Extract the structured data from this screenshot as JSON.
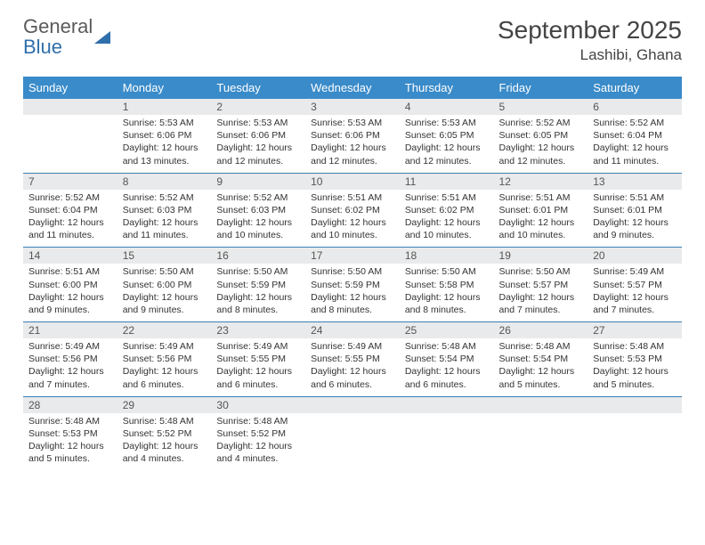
{
  "logo": {
    "line1": "General",
    "line2": "Blue"
  },
  "title": {
    "month": "September 2025",
    "location": "Lashibi, Ghana"
  },
  "weekdays": [
    "Sunday",
    "Monday",
    "Tuesday",
    "Wednesday",
    "Thursday",
    "Friday",
    "Saturday"
  ],
  "colors": {
    "header_bg": "#3a8bc9",
    "header_text": "#ffffff",
    "row_border": "#3a7fb5",
    "daynum_bg": "#e9eaeb",
    "body_text": "#333333",
    "logo_gray": "#5a5a5a",
    "logo_blue": "#2f6fab"
  },
  "typography": {
    "title_fontsize": 28,
    "location_fontsize": 17,
    "weekday_fontsize": 13,
    "daynum_fontsize": 12,
    "cell_fontsize": 10.5
  },
  "weeks": [
    [
      null,
      {
        "n": "1",
        "sr": "5:53 AM",
        "ss": "6:06 PM",
        "dl": "12 hours and 13 minutes."
      },
      {
        "n": "2",
        "sr": "5:53 AM",
        "ss": "6:06 PM",
        "dl": "12 hours and 12 minutes."
      },
      {
        "n": "3",
        "sr": "5:53 AM",
        "ss": "6:06 PM",
        "dl": "12 hours and 12 minutes."
      },
      {
        "n": "4",
        "sr": "5:53 AM",
        "ss": "6:05 PM",
        "dl": "12 hours and 12 minutes."
      },
      {
        "n": "5",
        "sr": "5:52 AM",
        "ss": "6:05 PM",
        "dl": "12 hours and 12 minutes."
      },
      {
        "n": "6",
        "sr": "5:52 AM",
        "ss": "6:04 PM",
        "dl": "12 hours and 11 minutes."
      }
    ],
    [
      {
        "n": "7",
        "sr": "5:52 AM",
        "ss": "6:04 PM",
        "dl": "12 hours and 11 minutes."
      },
      {
        "n": "8",
        "sr": "5:52 AM",
        "ss": "6:03 PM",
        "dl": "12 hours and 11 minutes."
      },
      {
        "n": "9",
        "sr": "5:52 AM",
        "ss": "6:03 PM",
        "dl": "12 hours and 10 minutes."
      },
      {
        "n": "10",
        "sr": "5:51 AM",
        "ss": "6:02 PM",
        "dl": "12 hours and 10 minutes."
      },
      {
        "n": "11",
        "sr": "5:51 AM",
        "ss": "6:02 PM",
        "dl": "12 hours and 10 minutes."
      },
      {
        "n": "12",
        "sr": "5:51 AM",
        "ss": "6:01 PM",
        "dl": "12 hours and 10 minutes."
      },
      {
        "n": "13",
        "sr": "5:51 AM",
        "ss": "6:01 PM",
        "dl": "12 hours and 9 minutes."
      }
    ],
    [
      {
        "n": "14",
        "sr": "5:51 AM",
        "ss": "6:00 PM",
        "dl": "12 hours and 9 minutes."
      },
      {
        "n": "15",
        "sr": "5:50 AM",
        "ss": "6:00 PM",
        "dl": "12 hours and 9 minutes."
      },
      {
        "n": "16",
        "sr": "5:50 AM",
        "ss": "5:59 PM",
        "dl": "12 hours and 8 minutes."
      },
      {
        "n": "17",
        "sr": "5:50 AM",
        "ss": "5:59 PM",
        "dl": "12 hours and 8 minutes."
      },
      {
        "n": "18",
        "sr": "5:50 AM",
        "ss": "5:58 PM",
        "dl": "12 hours and 8 minutes."
      },
      {
        "n": "19",
        "sr": "5:50 AM",
        "ss": "5:57 PM",
        "dl": "12 hours and 7 minutes."
      },
      {
        "n": "20",
        "sr": "5:49 AM",
        "ss": "5:57 PM",
        "dl": "12 hours and 7 minutes."
      }
    ],
    [
      {
        "n": "21",
        "sr": "5:49 AM",
        "ss": "5:56 PM",
        "dl": "12 hours and 7 minutes."
      },
      {
        "n": "22",
        "sr": "5:49 AM",
        "ss": "5:56 PM",
        "dl": "12 hours and 6 minutes."
      },
      {
        "n": "23",
        "sr": "5:49 AM",
        "ss": "5:55 PM",
        "dl": "12 hours and 6 minutes."
      },
      {
        "n": "24",
        "sr": "5:49 AM",
        "ss": "5:55 PM",
        "dl": "12 hours and 6 minutes."
      },
      {
        "n": "25",
        "sr": "5:48 AM",
        "ss": "5:54 PM",
        "dl": "12 hours and 6 minutes."
      },
      {
        "n": "26",
        "sr": "5:48 AM",
        "ss": "5:54 PM",
        "dl": "12 hours and 5 minutes."
      },
      {
        "n": "27",
        "sr": "5:48 AM",
        "ss": "5:53 PM",
        "dl": "12 hours and 5 minutes."
      }
    ],
    [
      {
        "n": "28",
        "sr": "5:48 AM",
        "ss": "5:53 PM",
        "dl": "12 hours and 5 minutes."
      },
      {
        "n": "29",
        "sr": "5:48 AM",
        "ss": "5:52 PM",
        "dl": "12 hours and 4 minutes."
      },
      {
        "n": "30",
        "sr": "5:48 AM",
        "ss": "5:52 PM",
        "dl": "12 hours and 4 minutes."
      },
      null,
      null,
      null,
      null
    ]
  ],
  "labels": {
    "sunrise": "Sunrise:",
    "sunset": "Sunset:",
    "daylight": "Daylight:"
  }
}
